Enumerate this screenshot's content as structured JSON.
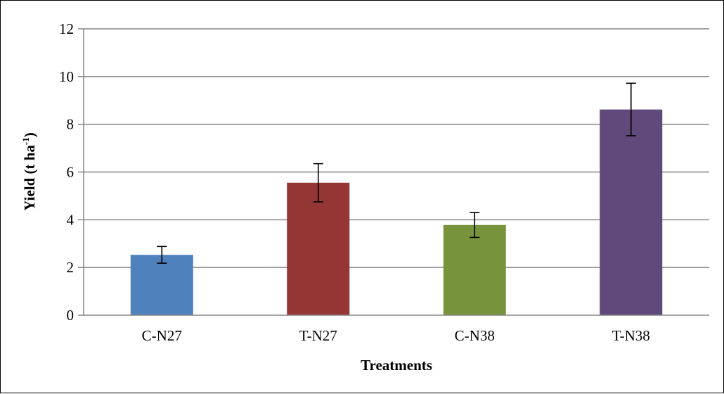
{
  "chart_data": {
    "type": "bar",
    "categories": [
      "C-N27",
      "T-N27",
      "C-N38",
      "T-N38"
    ],
    "values": [
      2.53,
      5.55,
      3.78,
      8.62
    ],
    "error_bars": [
      0.35,
      0.8,
      0.52,
      1.1
    ],
    "colors": [
      "#4f81bd",
      "#943634",
      "#77933c",
      "#604a7b"
    ],
    "xlabel": "Treatments",
    "ylabel_main": "Yield (t ha",
    "ylabel_sup": "-1",
    "ylabel_close": ")",
    "ylim": [
      0,
      12
    ],
    "yticks": [
      "0",
      "2",
      "4",
      "6",
      "8",
      "10",
      "12"
    ],
    "grid": true,
    "legend": "none"
  }
}
